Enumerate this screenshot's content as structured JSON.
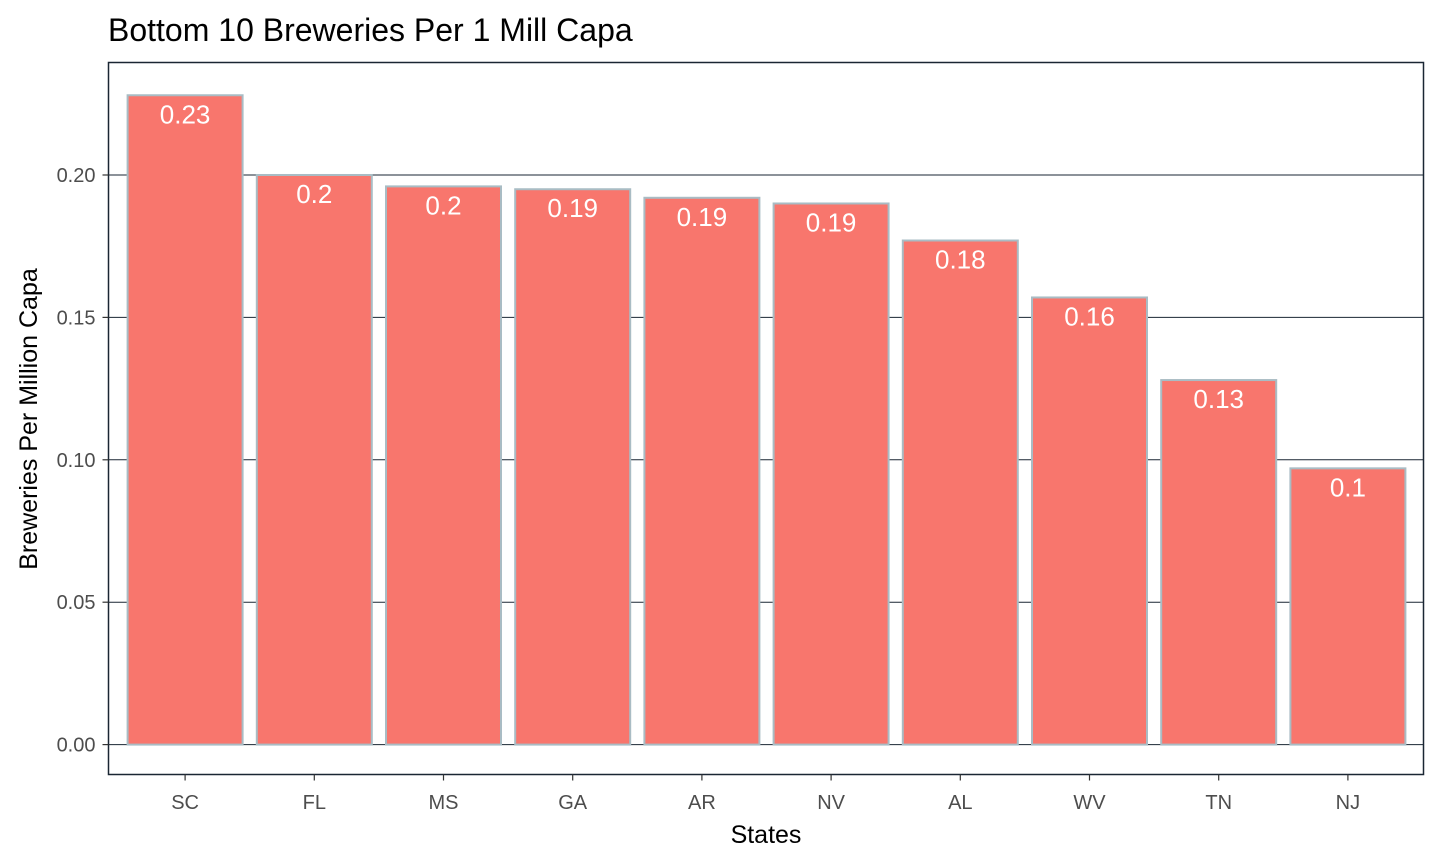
{
  "chart_data": {
    "type": "bar",
    "title": "Bottom 10 Breweries Per 1 Mill Capa",
    "xlabel": "States",
    "ylabel": "Breweries Per Million Capa",
    "categories": [
      "SC",
      "FL",
      "MS",
      "GA",
      "AR",
      "NV",
      "AL",
      "WV",
      "TN",
      "NJ"
    ],
    "values": [
      0.228,
      0.2,
      0.196,
      0.195,
      0.192,
      0.19,
      0.177,
      0.157,
      0.128,
      0.097
    ],
    "value_labels": [
      "0.23",
      "0.2",
      "0.2",
      "0.19",
      "0.19",
      "0.19",
      "0.18",
      "0.16",
      "0.13",
      "0.1"
    ],
    "ylim": [
      -0.0105,
      0.2395
    ],
    "yticks": [
      0.0,
      0.05,
      0.1,
      0.15,
      0.2
    ],
    "ytick_labels": [
      "0.00",
      "0.05",
      "0.10",
      "0.15",
      "0.20"
    ],
    "grid": "horizontal major lines",
    "legend": "none",
    "colors": {
      "bar_fill": "#F8766D",
      "bar_outline": "#A9BCC4",
      "panel_border": "#1a2633",
      "gridline": "#1a2633",
      "label_text": "#ffffff"
    }
  }
}
